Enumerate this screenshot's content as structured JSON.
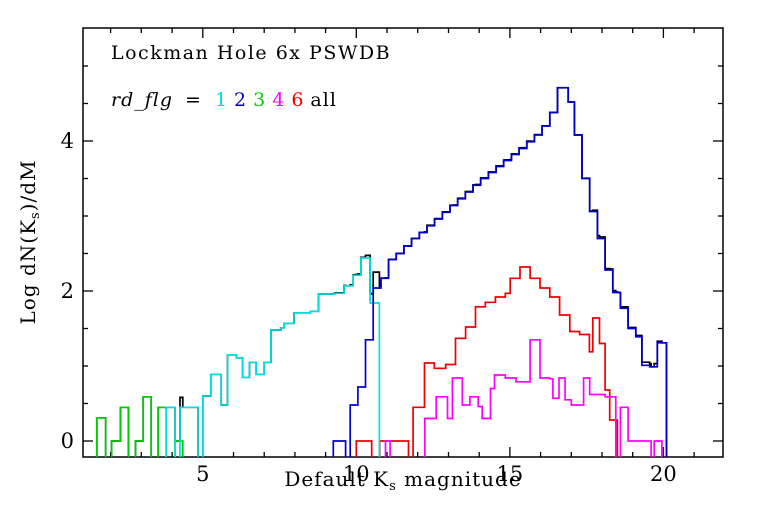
{
  "figure": {
    "title": "Lockman Hole 6x PSWDB",
    "legend": {
      "prefix": "rd_flg",
      "equals": "=",
      "entries": [
        {
          "label": "1",
          "color": "#00DDDD"
        },
        {
          "label": "2",
          "color": "#0000CD"
        },
        {
          "label": "3",
          "color": "#00CD00"
        },
        {
          "label": "4",
          "color": "#FF00FF"
        },
        {
          "label": "6",
          "color": "#EE0000"
        },
        {
          "label": "all",
          "color": "#000000"
        }
      ]
    },
    "x_axis": {
      "label_parts": [
        "Default K",
        "s",
        " magnitude"
      ],
      "tick_labels": [
        "5",
        "10",
        "15",
        "20"
      ],
      "tick_values": [
        5,
        10,
        15,
        20
      ],
      "minor_tick_values": [
        2,
        3,
        4,
        6,
        7,
        8,
        9,
        11,
        12,
        13,
        14,
        16,
        17,
        18,
        19,
        21
      ],
      "range": [
        1.1,
        21.94
      ]
    },
    "y_axis": {
      "label_parts": [
        "Log dN(K",
        "s",
        ")/dM"
      ],
      "tick_labels": [
        "0",
        "2",
        "4"
      ],
      "tick_values": [
        0,
        2,
        4
      ],
      "minor_tick_values": [
        0.5,
        1,
        1.5,
        2.5,
        3,
        3.5,
        4.5,
        5
      ],
      "range": [
        -0.213,
        5.507
      ]
    }
  },
  "chart_data": {
    "type": "step-histogram",
    "title": "Lockman Hole 6x PSWDB",
    "xlabel": "Default Ks magnitude",
    "ylabel": "Log dN(Ks)/dM",
    "xlim": [
      1.1,
      21.94
    ],
    "ylim": [
      -0.213,
      5.507
    ],
    "grid": false,
    "legend_position": "top-left-inside",
    "note_null_means": "histogram drops to plot floor (empty bins)",
    "series": [
      {
        "name": "rd_flg=3",
        "legend_label": "3",
        "color": "#00CD00",
        "steps": [
          [
            1.55,
            0.31
          ],
          [
            1.84,
            null
          ],
          [
            2.03,
            0.0
          ],
          [
            2.32,
            0.45
          ],
          [
            2.58,
            null
          ],
          [
            2.81,
            0.0
          ],
          [
            3.06,
            0.59
          ],
          [
            3.32,
            null
          ],
          [
            3.55,
            0.45
          ],
          [
            3.81,
            null
          ],
          [
            4.1,
            0.0
          ],
          [
            4.35,
            null
          ]
        ]
      },
      {
        "name": "rd_flg=1",
        "legend_label": "1",
        "color": "#00DDDD",
        "steps": [
          [
            3.81,
            0.45
          ],
          [
            4.1,
            null
          ],
          [
            4.26,
            0.45
          ],
          [
            4.84,
            null
          ],
          [
            5.0,
            0.6
          ],
          [
            5.26,
            0.89
          ],
          [
            5.6,
            0.48
          ],
          [
            5.81,
            1.15
          ],
          [
            6.1,
            1.11
          ],
          [
            6.3,
            0.85
          ],
          [
            6.52,
            1.05
          ],
          [
            6.74,
            0.89
          ],
          [
            7.0,
            1.05
          ],
          [
            7.22,
            1.48
          ],
          [
            7.55,
            1.51
          ],
          [
            7.65,
            1.57
          ],
          [
            7.97,
            1.71
          ],
          [
            8.5,
            1.73
          ],
          [
            8.77,
            1.96
          ],
          [
            9.3,
            1.97
          ],
          [
            9.6,
            2.07
          ],
          [
            9.9,
            2.21
          ],
          [
            10.15,
            2.44
          ],
          [
            10.45,
            1.84
          ],
          [
            10.75,
            null
          ]
        ]
      },
      {
        "name": "rd_flg=6",
        "legend_label": "6",
        "color": "#EE0000",
        "steps": [
          [
            10.0,
            0.0
          ],
          [
            10.5,
            null
          ],
          [
            10.76,
            0.0
          ],
          [
            11.7,
            null
          ],
          [
            11.85,
            0.45
          ],
          [
            12.22,
            1.04
          ],
          [
            12.54,
            0.97
          ],
          [
            12.91,
            1.02
          ],
          [
            13.23,
            1.37
          ],
          [
            13.56,
            1.52
          ],
          [
            13.88,
            1.79
          ],
          [
            14.2,
            1.85
          ],
          [
            14.53,
            1.92
          ],
          [
            14.85,
            1.97
          ],
          [
            15.01,
            2.17
          ],
          [
            15.33,
            2.32
          ],
          [
            15.66,
            2.17
          ],
          [
            15.98,
            2.04
          ],
          [
            16.3,
            1.92
          ],
          [
            16.62,
            1.68
          ],
          [
            16.95,
            1.46
          ],
          [
            17.27,
            1.42
          ],
          [
            17.59,
            1.19
          ],
          [
            17.7,
            1.64
          ],
          [
            17.92,
            1.3
          ],
          [
            18.1,
            0.68
          ],
          [
            18.25,
            0.28
          ],
          [
            18.5,
            null
          ]
        ]
      },
      {
        "name": "rd_flg=4",
        "legend_label": "4",
        "color": "#FF00FF",
        "steps": [
          [
            10.95,
            0.0
          ],
          [
            11.1,
            null
          ],
          [
            12.23,
            0.3
          ],
          [
            12.6,
            0.59
          ],
          [
            12.97,
            0.3
          ],
          [
            13.13,
            0.84
          ],
          [
            13.45,
            0.48
          ],
          [
            13.7,
            0.59
          ],
          [
            13.97,
            0.46
          ],
          [
            14.1,
            0.3
          ],
          [
            14.37,
            0.7
          ],
          [
            14.5,
            0.88
          ],
          [
            14.85,
            0.84
          ],
          [
            15.2,
            0.79
          ],
          [
            15.66,
            1.35
          ],
          [
            15.98,
            0.84
          ],
          [
            16.3,
            0.83
          ],
          [
            16.4,
            0.57
          ],
          [
            16.6,
            0.84
          ],
          [
            16.8,
            0.55
          ],
          [
            17.0,
            0.48
          ],
          [
            17.4,
            0.84
          ],
          [
            17.6,
            0.62
          ],
          [
            18.1,
            0.59
          ],
          [
            18.45,
            null
          ],
          [
            18.6,
            0.45
          ],
          [
            18.85,
            0.0
          ],
          [
            19.6,
            null
          ],
          [
            19.7,
            0.0
          ],
          [
            19.95,
            null
          ]
        ]
      },
      {
        "name": "rd_flg=2",
        "legend_label": "2",
        "color": "#0000CD",
        "steps": [
          [
            9.25,
            0.0
          ],
          [
            9.65,
            null
          ],
          [
            9.8,
            0.48
          ],
          [
            10.05,
            0.72
          ],
          [
            10.3,
            1.35
          ],
          [
            10.55,
            2.04
          ],
          [
            10.8,
            2.17
          ],
          [
            11.05,
            2.42
          ],
          [
            11.3,
            2.5
          ],
          [
            11.55,
            2.6
          ],
          [
            11.8,
            2.7
          ],
          [
            12.05,
            2.78
          ],
          [
            12.3,
            2.87
          ],
          [
            12.55,
            2.96
          ],
          [
            12.8,
            3.05
          ],
          [
            13.05,
            3.14
          ],
          [
            13.3,
            3.23
          ],
          [
            13.55,
            3.32
          ],
          [
            13.8,
            3.41
          ],
          [
            14.05,
            3.5
          ],
          [
            14.3,
            3.58
          ],
          [
            14.55,
            3.66
          ],
          [
            14.8,
            3.74
          ],
          [
            15.05,
            3.82
          ],
          [
            15.3,
            3.9
          ],
          [
            15.55,
            3.99
          ],
          [
            15.8,
            4.08
          ],
          [
            16.05,
            4.2
          ],
          [
            16.3,
            4.38
          ],
          [
            16.55,
            4.71
          ],
          [
            16.9,
            4.52
          ],
          [
            17.1,
            4.08
          ],
          [
            17.35,
            3.5
          ],
          [
            17.6,
            3.06
          ],
          [
            17.85,
            2.7
          ],
          [
            18.1,
            2.28
          ],
          [
            18.35,
            1.98
          ],
          [
            18.6,
            1.77
          ],
          [
            18.85,
            1.5
          ],
          [
            19.1,
            1.39
          ],
          [
            19.3,
            1.01
          ],
          [
            19.55,
            0.99
          ],
          [
            19.8,
            1.31
          ],
          [
            20.1,
            null
          ]
        ]
      }
    ],
    "all_series": {
      "name": "all",
      "legend_label": "all",
      "color": "#000000",
      "derived": "log10 of the summed counts of all rd_flg series"
    }
  }
}
